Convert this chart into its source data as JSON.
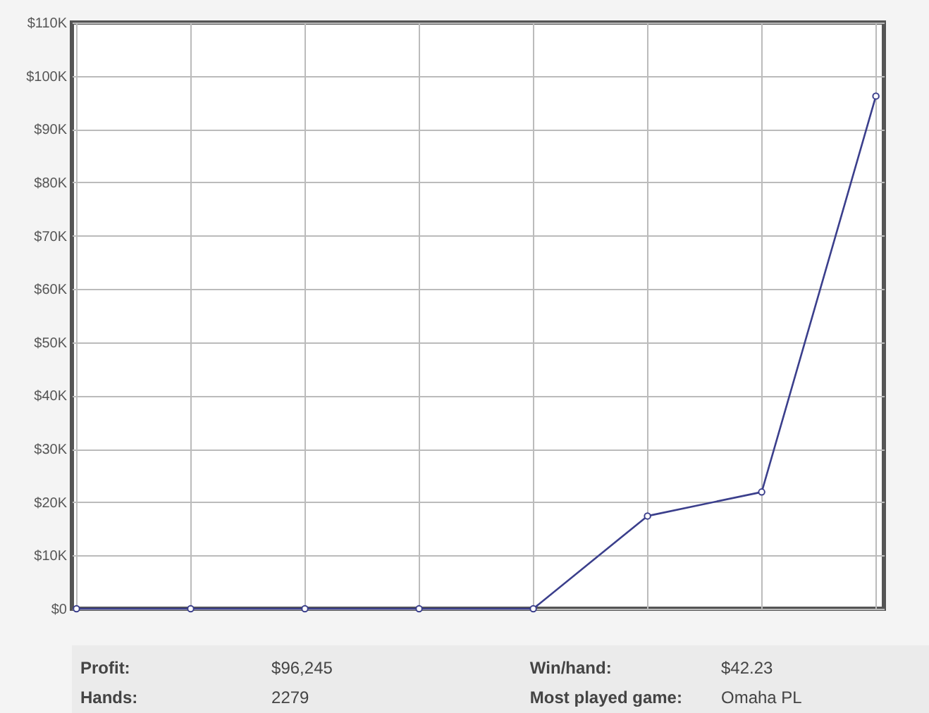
{
  "chart_data": {
    "type": "line",
    "categories": [
      null,
      null,
      null,
      null,
      null,
      null,
      null,
      null
    ],
    "series": [
      {
        "color": "#3b3f8c",
        "values": [
          0,
          0,
          0,
          0,
          0,
          17400,
          21900,
          96200
        ]
      }
    ],
    "ylim": [
      0,
      110000
    ],
    "yticks": [
      {
        "value": 0,
        "label": "$0"
      },
      {
        "value": 10000,
        "label": "$10K"
      },
      {
        "value": 20000,
        "label": "$20K"
      },
      {
        "value": 30000,
        "label": "$30K"
      },
      {
        "value": 40000,
        "label": "$40K"
      },
      {
        "value": 50000,
        "label": "$50K"
      },
      {
        "value": 60000,
        "label": "$60K"
      },
      {
        "value": 70000,
        "label": "$70K"
      },
      {
        "value": 80000,
        "label": "$80K"
      },
      {
        "value": 90000,
        "label": "$90K"
      },
      {
        "value": 100000,
        "label": "$100K"
      },
      {
        "value": 110000,
        "label": "$110K"
      }
    ],
    "tick_labels": "y",
    "grid": true,
    "marker": "circle",
    "line_style": "solid",
    "legend": false,
    "annotations": [
      "Profit:",
      "$96,245",
      "Win/hand:",
      "$42.23",
      "Hands:",
      "2279",
      "Most played game:",
      "Omaha PL"
    ]
  }
}
